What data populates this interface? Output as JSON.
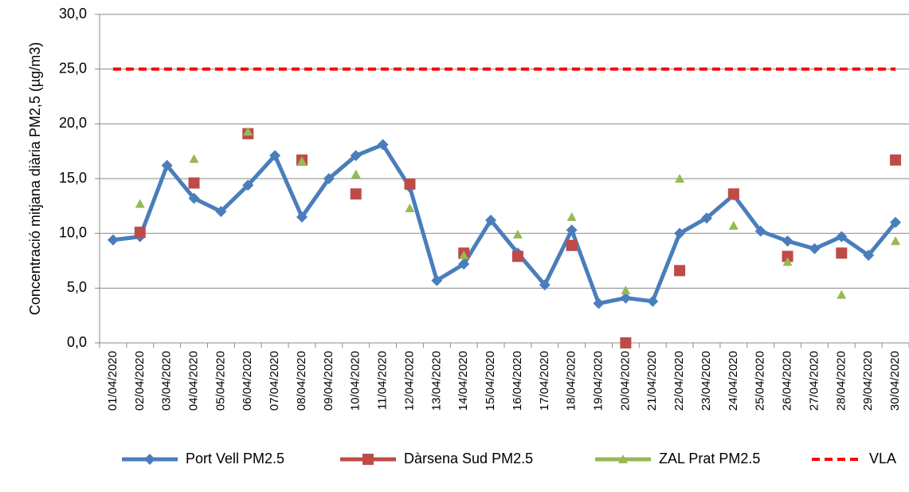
{
  "chart_data": {
    "type": "line",
    "y_label": "Concentració mitjana diària PM2,5 (µg/m3)",
    "categories": [
      "01/04/2020",
      "02/04/2020",
      "03/04/2020",
      "04/04/2020",
      "05/04/2020",
      "06/04/2020",
      "07/04/2020",
      "08/04/2020",
      "09/04/2020",
      "10/04/2020",
      "11/04/2020",
      "12/04/2020",
      "13/04/2020",
      "14/04/2020",
      "15/04/2020",
      "16/04/2020",
      "17/04/2020",
      "18/04/2020",
      "19/04/2020",
      "20/04/2020",
      "21/04/2020",
      "22/04/2020",
      "23/04/2020",
      "24/04/2020",
      "25/04/2020",
      "26/04/2020",
      "27/04/2020",
      "28/04/2020",
      "29/04/2020",
      "30/04/2020"
    ],
    "series": [
      {
        "name": "Port Vell PM2.5",
        "color": "#4a7ebb",
        "line": "solid",
        "marker": "diamond",
        "values": [
          9.4,
          9.7,
          16.2,
          13.2,
          12.0,
          14.4,
          17.1,
          11.5,
          15.0,
          17.1,
          18.1,
          14.2,
          5.7,
          7.2,
          11.2,
          8.2,
          5.3,
          10.3,
          3.6,
          4.1,
          3.8,
          10.0,
          11.4,
          13.5,
          10.2,
          9.3,
          8.6,
          9.7,
          8.0,
          11.0
        ]
      },
      {
        "name": "Dàrsena Sud PM2.5",
        "color": "#be4b48",
        "line": "none",
        "marker": "square",
        "values": [
          null,
          10.1,
          null,
          14.6,
          null,
          19.1,
          null,
          16.7,
          null,
          13.6,
          null,
          14.5,
          null,
          8.2,
          null,
          7.9,
          null,
          8.9,
          null,
          0.0,
          null,
          6.6,
          null,
          13.6,
          null,
          7.9,
          null,
          8.2,
          null,
          16.7
        ]
      },
      {
        "name": "ZAL Prat PM2.5",
        "color": "#98b954",
        "line": "none",
        "marker": "triangle",
        "values": [
          null,
          12.7,
          null,
          16.8,
          null,
          19.3,
          null,
          16.6,
          null,
          15.4,
          null,
          12.3,
          null,
          8.0,
          null,
          9.9,
          null,
          11.5,
          null,
          4.8,
          null,
          15.0,
          null,
          10.7,
          null,
          7.4,
          null,
          4.4,
          null,
          9.3
        ]
      },
      {
        "name": "VLA",
        "color": "#ff0000",
        "line": "dashed",
        "marker": "none",
        "values": [
          25,
          25,
          25,
          25,
          25,
          25,
          25,
          25,
          25,
          25,
          25,
          25,
          25,
          25,
          25,
          25,
          25,
          25,
          25,
          25,
          25,
          25,
          25,
          25,
          25,
          25,
          25,
          25,
          25,
          25
        ]
      }
    ],
    "ylim": [
      0,
      30
    ],
    "yticks": [
      {
        "value": 0,
        "label": "0,0"
      },
      {
        "value": 5,
        "label": "5,0"
      },
      {
        "value": 10,
        "label": "10,0"
      },
      {
        "value": 15,
        "label": "15,0"
      },
      {
        "value": 20,
        "label": "20,0"
      },
      {
        "value": 25,
        "label": "25,0"
      },
      {
        "value": 30,
        "label": "30,0"
      }
    ],
    "grid": true,
    "legend": "bottom"
  }
}
